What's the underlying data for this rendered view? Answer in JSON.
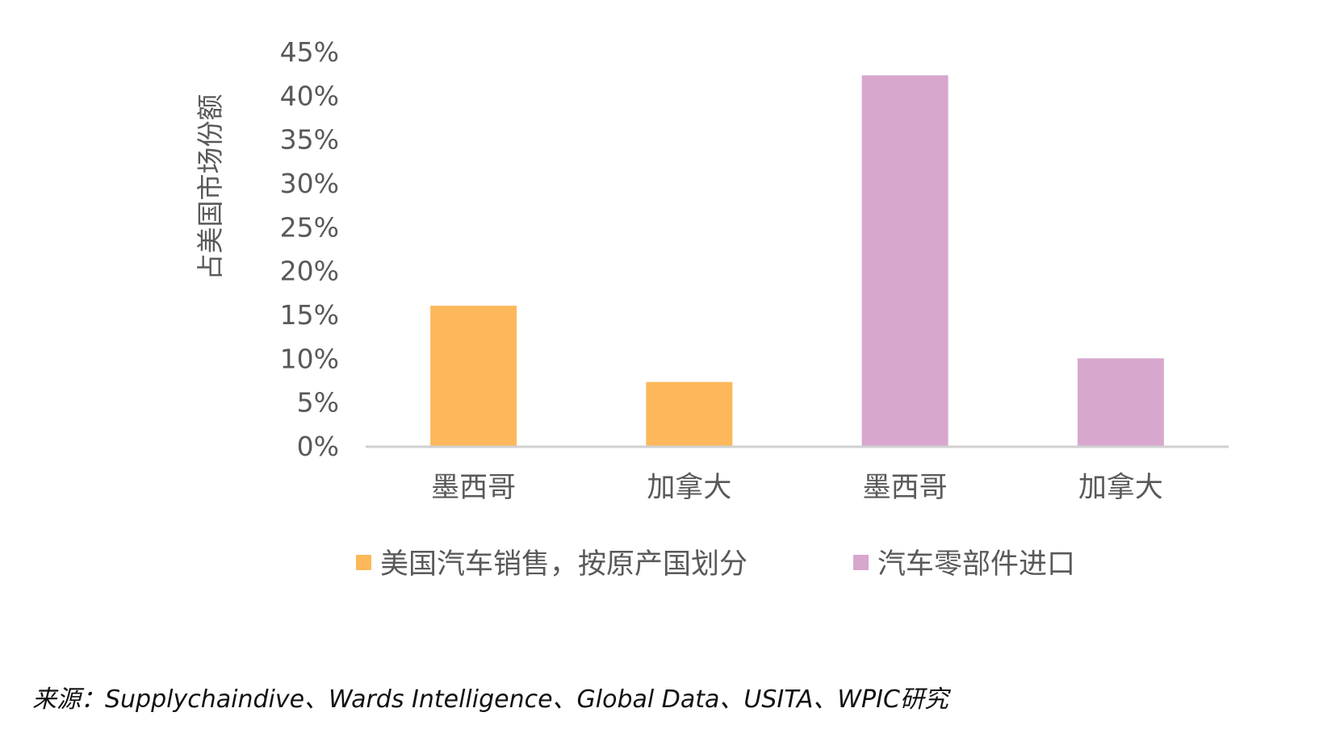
{
  "chart_data": {
    "type": "bar",
    "ylabel": "占美国市场份额",
    "ylim": [
      0,
      45
    ],
    "yticks": [
      "0%",
      "5%",
      "10%",
      "15%",
      "20%",
      "25%",
      "30%",
      "35%",
      "40%",
      "45%"
    ],
    "grid": false,
    "legend_position": "bottom",
    "bars": [
      {
        "category": "墨西哥",
        "series": "美国汽车销售，按原产国划分",
        "value": 16
      },
      {
        "category": "加拿大",
        "series": "美国汽车销售，按原产国划分",
        "value": 7.3
      },
      {
        "category": "墨西哥",
        "series": "汽车零部件进口",
        "value": 42.3
      },
      {
        "category": "加拿大",
        "series": "汽车零部件进口",
        "value": 10
      }
    ],
    "series": [
      {
        "name": "美国汽车销售，按原产国划分",
        "color": "#FDB85B"
      },
      {
        "name": "汽车零部件进口",
        "color": "#D7A7CD"
      }
    ]
  },
  "source": "来源：Supplychaindive、Wards Intelligence、Global Data、USITA、WPIC研究"
}
